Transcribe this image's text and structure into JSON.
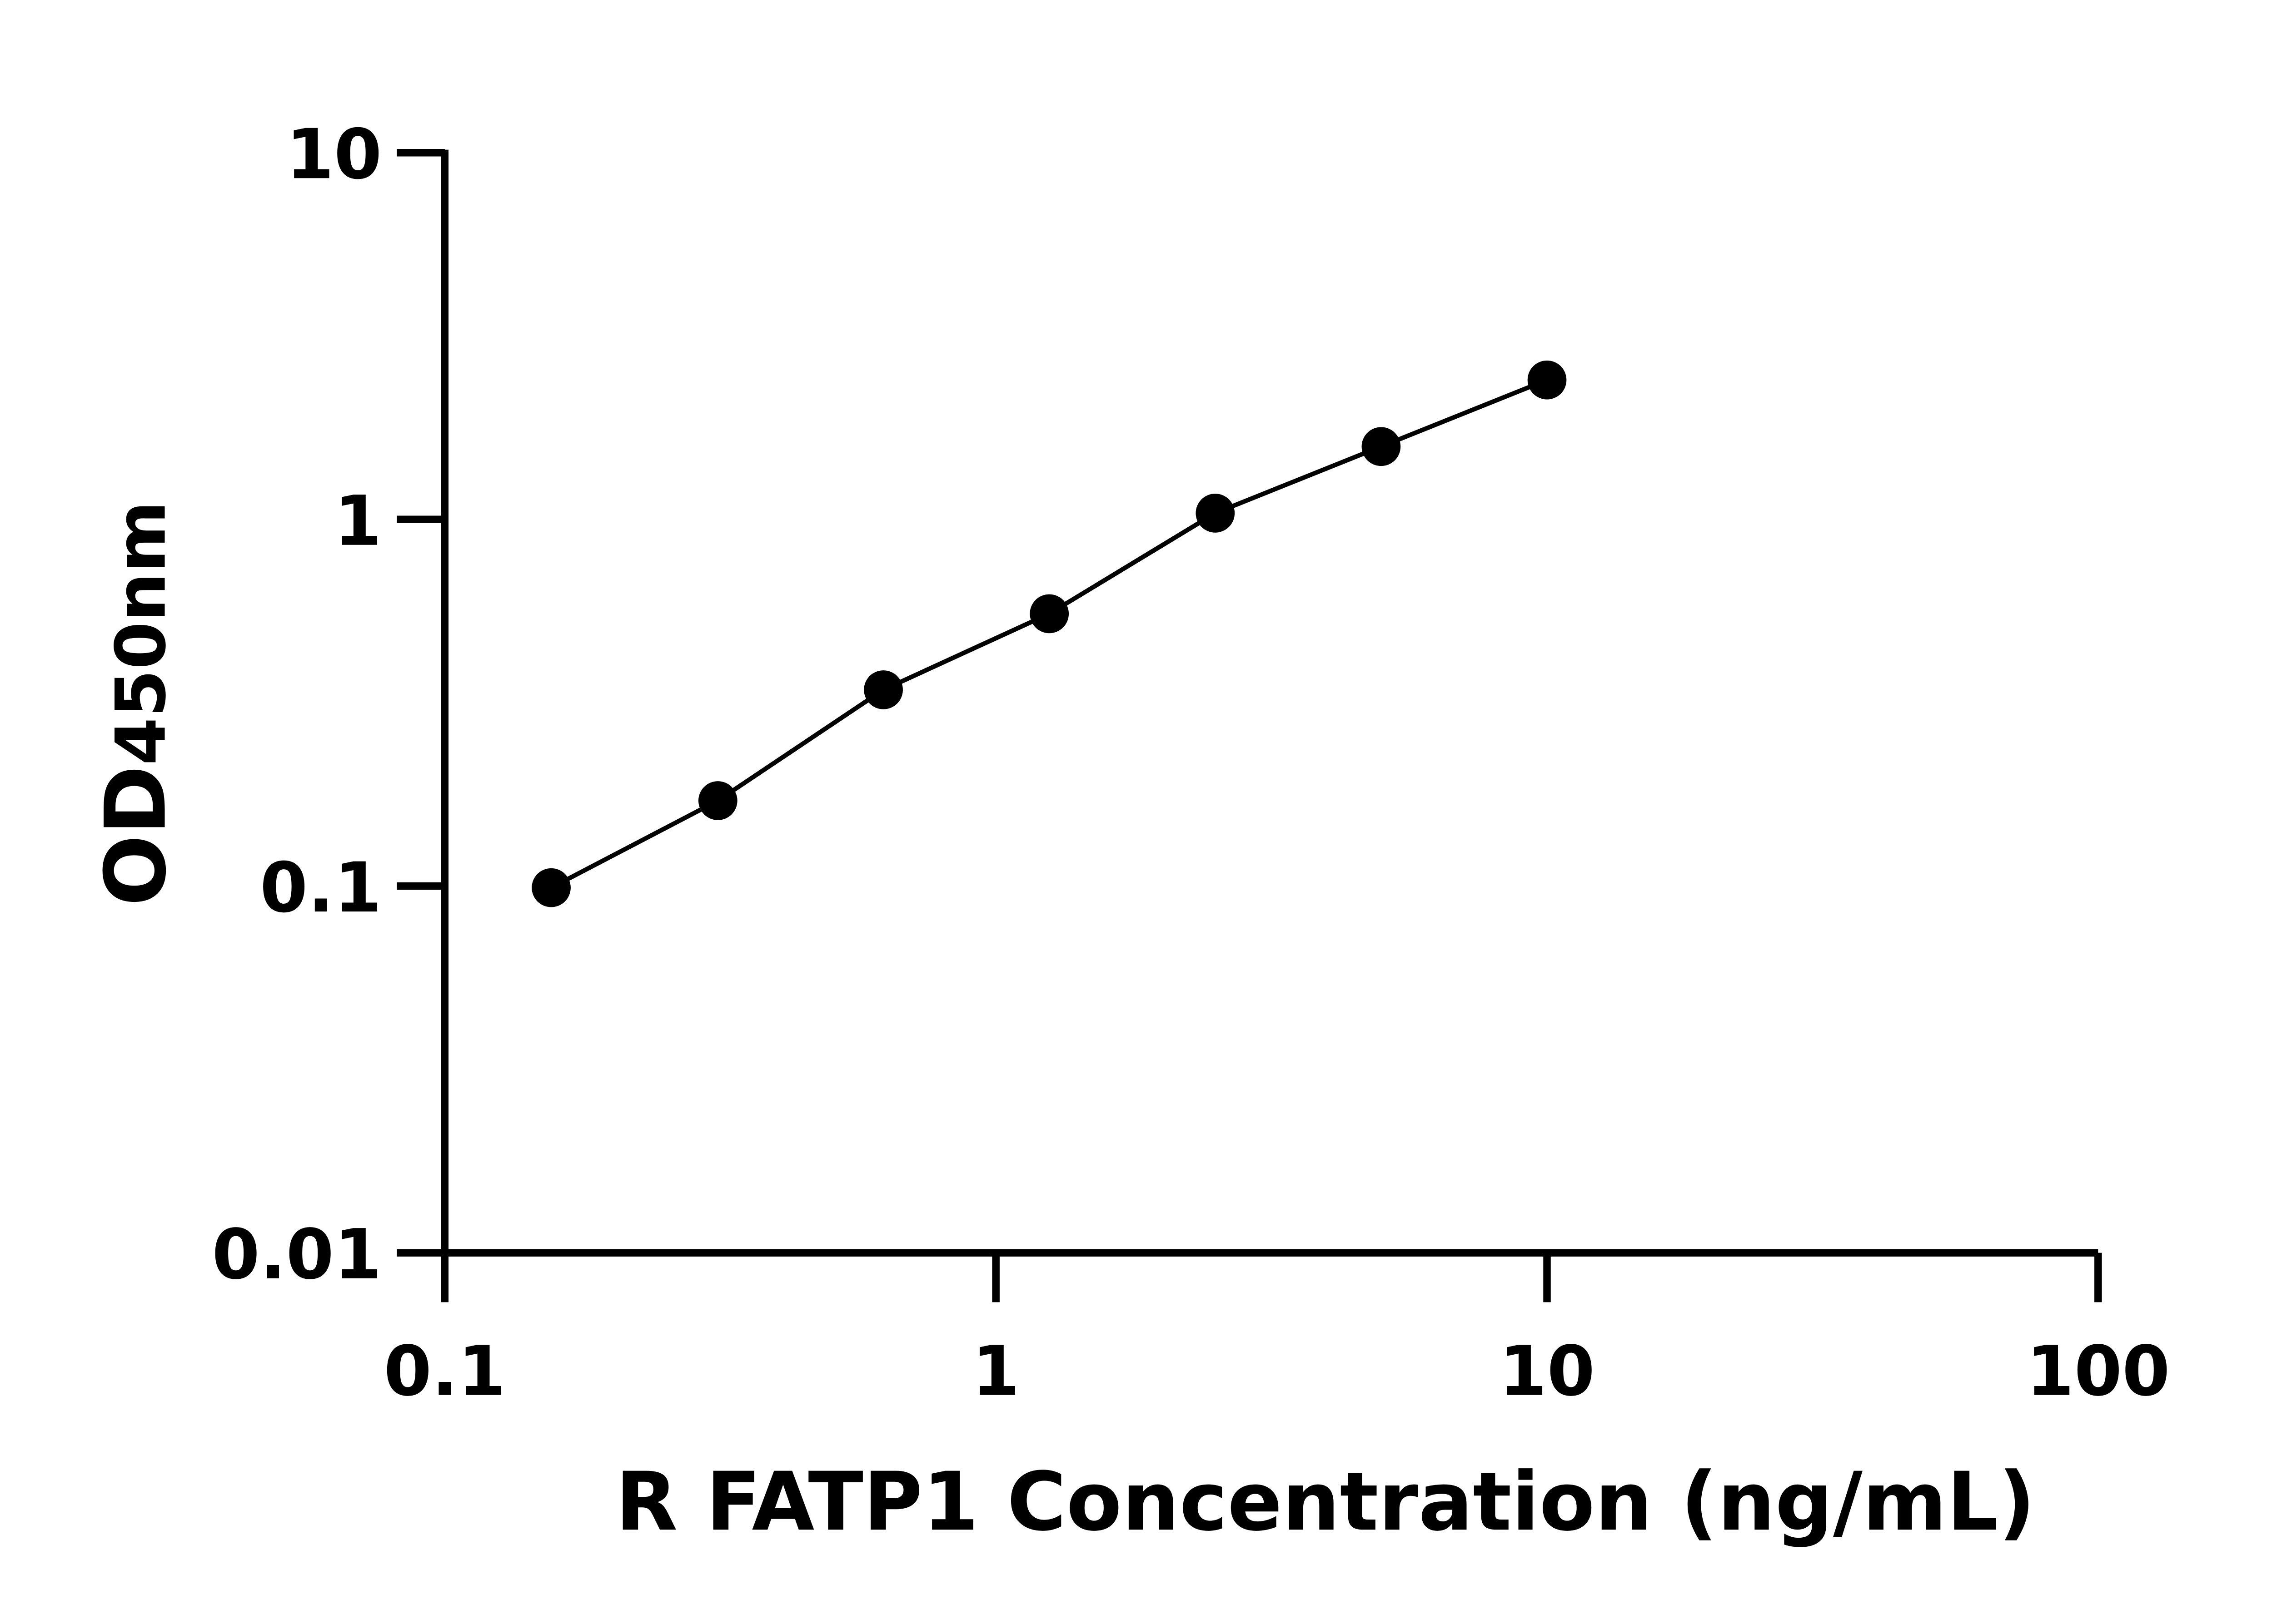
{
  "chart_data": {
    "type": "scatter",
    "title": "",
    "xlabel": "R FATP1 Concentration (ng/mL)",
    "ylabel": "OD",
    "ylabel_sub": "450nm",
    "xscale": "log",
    "yscale": "log",
    "xlim": [
      0.1,
      100
    ],
    "ylim": [
      0.01,
      10
    ],
    "xticks": [
      "0.1",
      "1",
      "10",
      "100"
    ],
    "yticks": [
      "0.01",
      "0.1",
      "1",
      "10"
    ],
    "grid": false,
    "legend": "none",
    "series": [
      {
        "x": [
          0.156,
          0.313,
          0.625,
          1.25,
          2.5,
          5,
          10
        ],
        "y": [
          0.099,
          0.171,
          0.343,
          0.553,
          1.04,
          1.58,
          2.4
        ],
        "fit_line": true,
        "color": "#000000"
      }
    ]
  }
}
